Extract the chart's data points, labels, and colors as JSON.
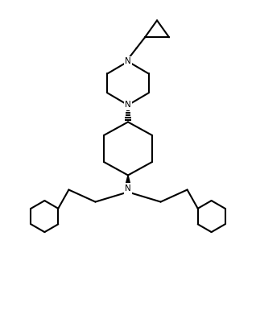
{
  "line_color": "#000000",
  "bg_color": "#ffffff",
  "lw": 1.5,
  "figsize": [
    3.18,
    3.96
  ],
  "dpi": 100,
  "xlim": [
    0,
    10
  ],
  "ylim": [
    0,
    13
  ]
}
